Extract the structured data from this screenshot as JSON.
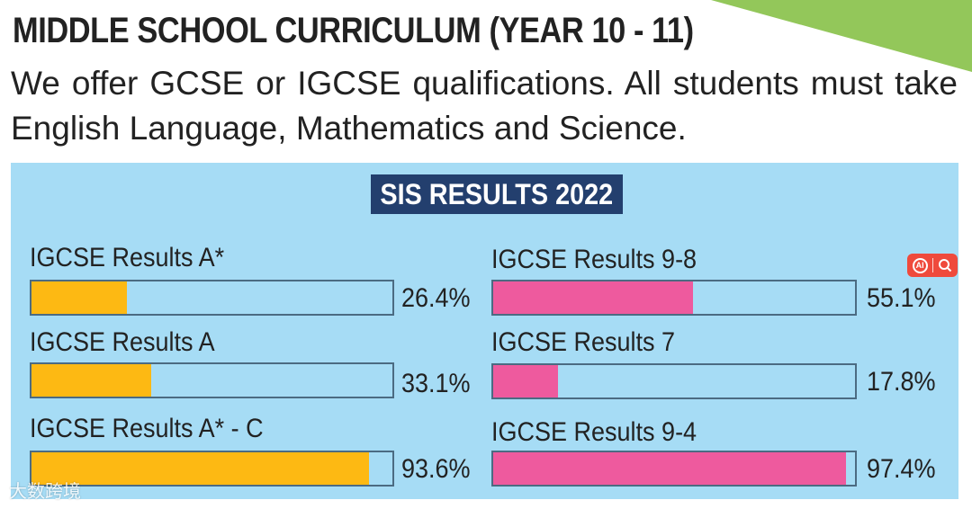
{
  "page": {
    "title": "MIDDLE SCHOOL CURRICULUM (YEAR 10 - 11)",
    "intro": "We offer GCSE or IGCSE qualifications. All students must take English Language, Mathematics and Science.",
    "accent_green": "#93c75a"
  },
  "chart_data": {
    "type": "bar",
    "title": "SIS RESULTS 2022",
    "ylim": [
      0,
      100
    ],
    "groups": [
      {
        "color": "#fdb913",
        "items": [
          {
            "label": "IGCSE Results A*",
            "value": 26.4,
            "display": "26.4%"
          },
          {
            "label": "IGCSE Results A",
            "value": 33.1,
            "display": "33.1%"
          },
          {
            "label": "IGCSE Results A* - C",
            "value": 93.6,
            "display": "93.6%"
          }
        ]
      },
      {
        "color": "#ee5a9e",
        "items": [
          {
            "label": "IGCSE Results 9-8",
            "value": 55.1,
            "display": "55.1%"
          },
          {
            "label": "IGCSE Results 7",
            "value": 17.8,
            "display": "17.8%"
          },
          {
            "label": "IGCSE Results 9-4",
            "value": 97.4,
            "display": "97.4%"
          }
        ]
      }
    ],
    "colors": {
      "panel": "#a6dcf5",
      "badge": "#233f6e",
      "track_border": "#4b6b82"
    }
  },
  "overlay": {
    "ai_badge_text": "AI",
    "ai_icon": "ai-search-icon",
    "watermark": "大数跨境"
  }
}
